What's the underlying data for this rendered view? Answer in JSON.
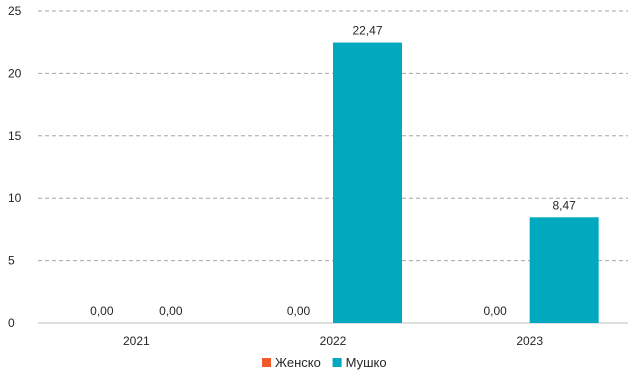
{
  "chart_data": {
    "type": "bar",
    "categories": [
      "2021",
      "2022",
      "2023"
    ],
    "series": [
      {
        "name": "Женско",
        "color": "#F05A28",
        "values": [
          0.0,
          0.0,
          0.0
        ],
        "labels": [
          "0,00",
          "0,00",
          "0,00"
        ]
      },
      {
        "name": "Мушко",
        "color": "#00A9BD",
        "values": [
          0.0,
          22.47,
          8.47
        ],
        "labels": [
          "0,00",
          "22,47",
          "8,47"
        ]
      }
    ],
    "ylim": [
      0,
      25
    ],
    "yticks": [
      0,
      5,
      10,
      15,
      20,
      25
    ],
    "grid": true,
    "legend_position": "bottom",
    "title": "",
    "xlabel": "",
    "ylabel": ""
  }
}
